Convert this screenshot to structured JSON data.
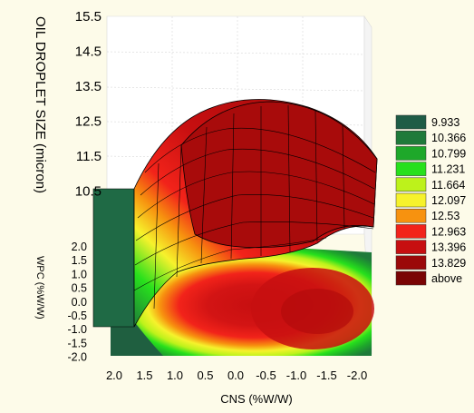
{
  "chart_data": {
    "type": "surface3d",
    "title": "",
    "zlabel": "OIL DROPLET SIZE (micron)",
    "ylabel": "WPC (%W/W)",
    "xlabel": "CNS (%W/W)",
    "z_ticks": [
      "15.5",
      "14.5",
      "13.5",
      "12.5",
      "11.5",
      "10.5"
    ],
    "y_ticks": [
      "2.0",
      "1.5",
      "1.0",
      "0.5",
      "0.0",
      "-0.5",
      "-1.0",
      "-1.5",
      "-2.0"
    ],
    "x_ticks": [
      "2.0",
      "1.5",
      "1.0",
      "0.5",
      "0.0",
      "-0.5",
      "-1.0",
      "-1.5",
      "-2.0"
    ],
    "xlim": [
      2.0,
      -2.0
    ],
    "ylim": [
      -2.0,
      2.0
    ],
    "zlim": [
      10.5,
      15.5
    ],
    "legend_position": "right",
    "legend": [
      {
        "label": "9.933",
        "color": "#1e5c46"
      },
      {
        "label": "10.366",
        "color": "#1f7a3a"
      },
      {
        "label": "10.799",
        "color": "#1ea82a"
      },
      {
        "label": "11.231",
        "color": "#27e01c"
      },
      {
        "label": "11.664",
        "color": "#bdf21b"
      },
      {
        "label": "12.097",
        "color": "#f6f22c"
      },
      {
        "label": "12.53",
        "color": "#f7920f"
      },
      {
        "label": "12.963",
        "color": "#f2231a"
      },
      {
        "label": "13.396",
        "color": "#c70f10"
      },
      {
        "label": "13.829",
        "color": "#9b0909"
      },
      {
        "label": "above",
        "color": "#7a0404"
      }
    ]
  }
}
